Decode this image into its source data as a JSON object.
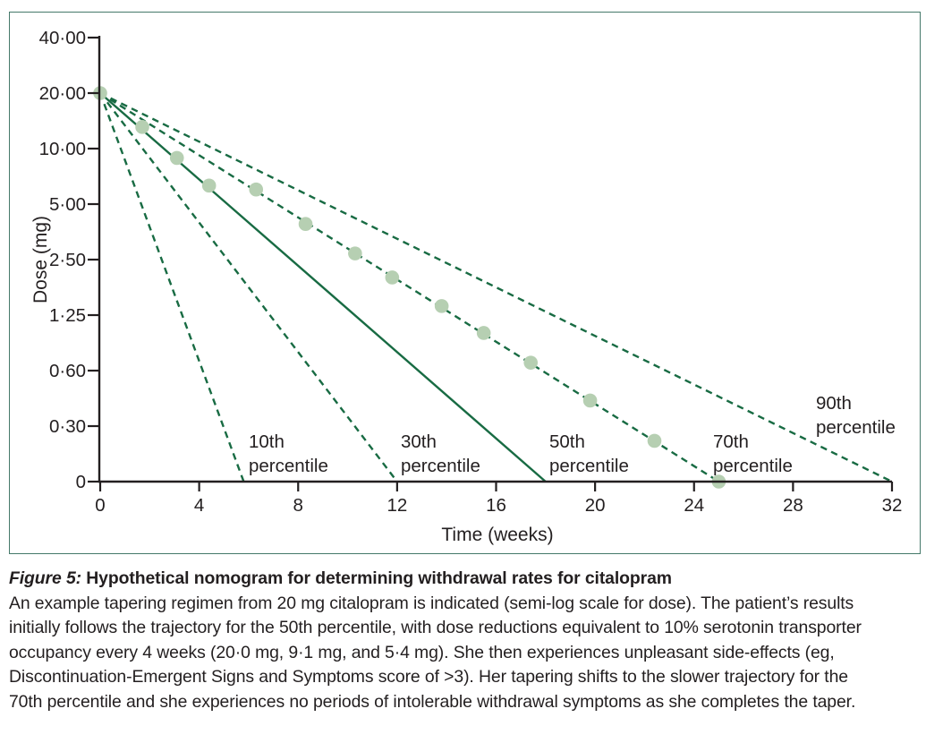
{
  "figure": {
    "title_prefix": "Figure 5:",
    "title_rest": " Hypothetical nomogram for determining withdrawal rates for citalopram",
    "caption_lines": [
      "An example tapering regimen from 20 mg citalopram is indicated (semi-log scale for dose). The patient’s results",
      "initially follows the trajectory for the 50th percentile, with dose reductions equivalent to 10% serotonin transporter",
      "occupancy every 4 weeks (20·0 mg, 9·1 mg, and 5·4 mg). She then experiences unpleasant side-effects (eg,",
      "Discontinuation-Emergent Signs and Symptoms score of >3). Her tapering shifts to the slower trajectory for the",
      "70th percentile and she experiences no periods of intolerable withdrawal symptoms as she completes the taper."
    ]
  },
  "chart_data": {
    "type": "line",
    "title": "",
    "xlabel": "Time (weeks)",
    "ylabel": "Dose (mg)",
    "x_scale": "linear",
    "y_scale": "log2 (semi-log), axis broken between 0·30 and 0",
    "xlim": [
      0,
      32
    ],
    "x_ticks": [
      0,
      4,
      8,
      12,
      16,
      20,
      24,
      28,
      32
    ],
    "y_tick_labels": [
      "40·00",
      "20·00",
      "10·00",
      "5·00",
      "2·50",
      "1·25",
      "0·60",
      "0·30",
      "0"
    ],
    "y_tick_values": [
      40,
      20,
      10,
      5,
      2.5,
      1.25,
      0.6,
      0.3,
      0
    ],
    "grid": false,
    "legend": "inline labels beside each line",
    "series": [
      {
        "name": "10th percentile",
        "style": "dashed",
        "start_week": 0,
        "start_dose": 20,
        "zero_dose_week": 5.8
      },
      {
        "name": "30th percentile",
        "style": "dashed",
        "start_week": 0,
        "start_dose": 20,
        "zero_dose_week": 12
      },
      {
        "name": "50th percentile",
        "style": "solid",
        "start_week": 0,
        "start_dose": 20,
        "zero_dose_week": 18
      },
      {
        "name": "70th percentile",
        "style": "dashed",
        "start_week": 0,
        "start_dose": 20,
        "zero_dose_week": 25
      },
      {
        "name": "90th percentile",
        "style": "dashed",
        "start_week": 0,
        "start_dose": 20,
        "zero_dose_week": 32
      }
    ],
    "patient_regimen": {
      "name": "Example tapering regimen (dots)",
      "points": [
        {
          "week": 0,
          "dose": 20
        },
        {
          "week": 1.7,
          "dose": 13.1
        },
        {
          "week": 3.1,
          "dose": 8.9
        },
        {
          "week": 4.4,
          "dose": 6.3
        },
        {
          "week": 6.3,
          "dose": 6.0
        },
        {
          "week": 8.3,
          "dose": 3.9
        },
        {
          "week": 10.3,
          "dose": 2.7
        },
        {
          "week": 11.8,
          "dose": 2.0
        },
        {
          "week": 13.8,
          "dose": 1.4
        },
        {
          "week": 15.5,
          "dose": 1.0
        },
        {
          "week": 17.4,
          "dose": 0.69
        },
        {
          "week": 19.8,
          "dose": 0.43
        },
        {
          "week": 22.4,
          "dose": 0.26
        },
        {
          "week": 25,
          "dose": 0
        }
      ]
    },
    "colors": {
      "line": "#186b43",
      "dot": "#b6cfb2",
      "axis": "#231f20",
      "panel_border": "#45796a"
    }
  }
}
